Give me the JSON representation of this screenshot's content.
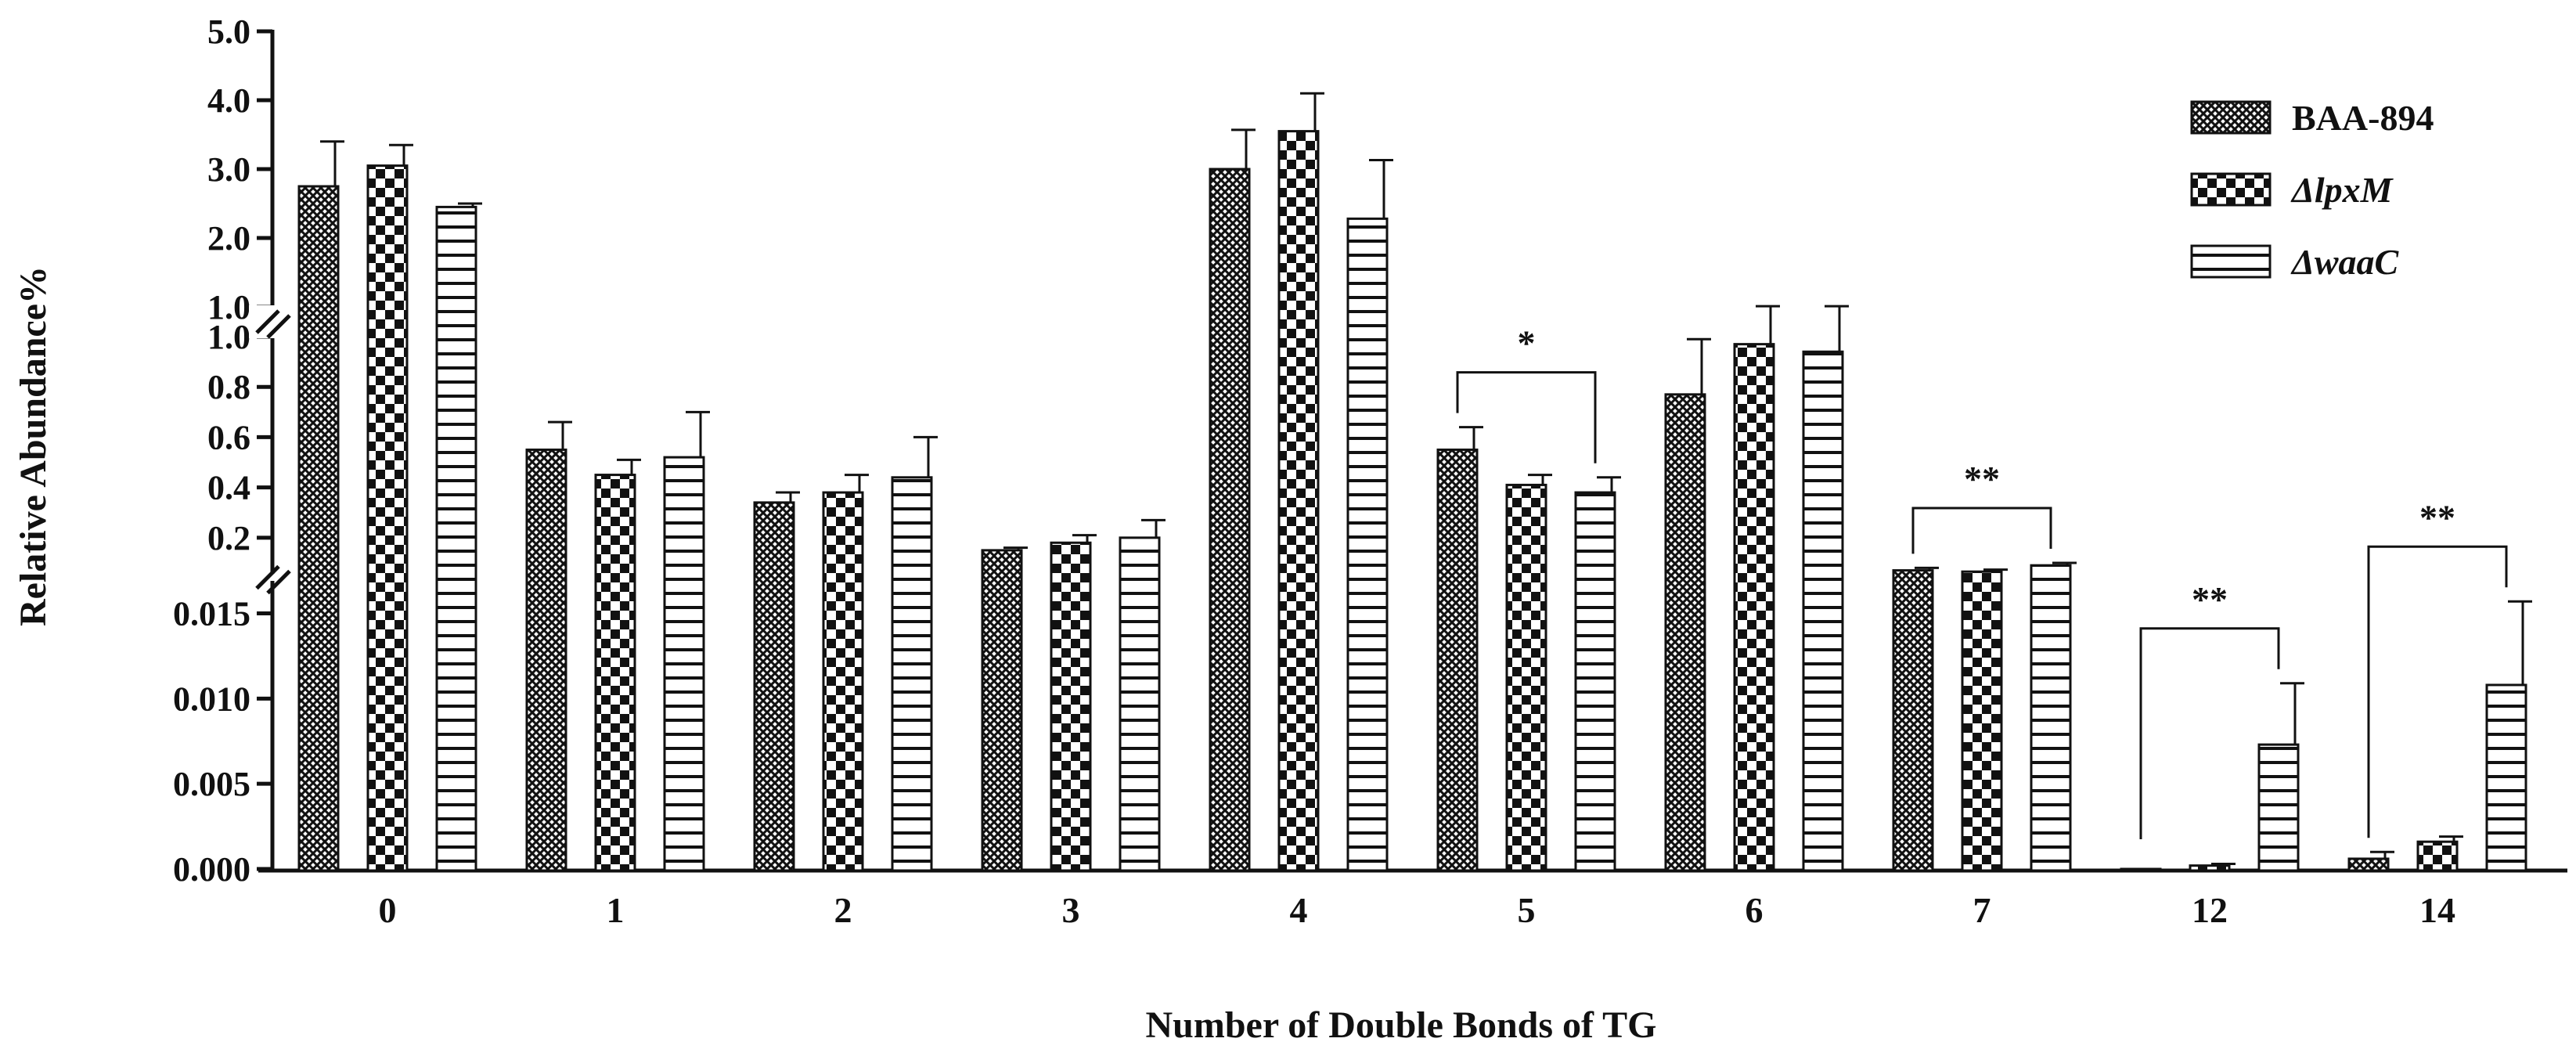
{
  "chart_data": {
    "type": "bar",
    "xlabel": "Number of Double Bonds of TG",
    "ylabel": "Relative Abundance%",
    "categories": [
      "0",
      "1",
      "2",
      "3",
      "4",
      "5",
      "6",
      "7",
      "12",
      "14"
    ],
    "series": [
      {
        "name": "BAA-894",
        "italic": false,
        "pattern": "crosshatch",
        "values": [
          2.75,
          0.55,
          0.34,
          0.15,
          3.0,
          0.55,
          0.77,
          0.07,
          0.0,
          0.0006
        ],
        "errors": [
          0.65,
          0.11,
          0.04,
          0.01,
          0.57,
          0.09,
          0.22,
          0.01,
          0.0,
          0.0004
        ]
      },
      {
        "name": "ΔlpxM",
        "italic": true,
        "pattern": "checker",
        "values": [
          3.05,
          0.45,
          0.38,
          0.18,
          3.55,
          0.41,
          0.97,
          0.065,
          0.0002,
          0.0016
        ],
        "errors": [
          0.3,
          0.06,
          0.07,
          0.03,
          0.55,
          0.04,
          0.04,
          0.008,
          0.0001,
          0.0003
        ]
      },
      {
        "name": "ΔwaaC",
        "italic": true,
        "pattern": "horizontal",
        "values": [
          2.45,
          0.52,
          0.44,
          0.2,
          2.28,
          0.38,
          0.94,
          0.09,
          0.0073,
          0.0108
        ],
        "errors": [
          0.05,
          0.18,
          0.16,
          0.07,
          0.85,
          0.06,
          0.07,
          0.01,
          0.0036,
          0.0049
        ]
      }
    ],
    "y_axis_segments": [
      {
        "range": [
          0,
          0.017
        ],
        "ticks": [
          "0.000",
          "0.005",
          "0.010",
          "0.015"
        ],
        "tick_values": [
          0,
          0.005,
          0.01,
          0.015
        ]
      },
      {
        "range": [
          0.05,
          1.0
        ],
        "ticks": [
          "0.2",
          "0.4",
          "0.6",
          "0.8",
          "1.0"
        ],
        "tick_values": [
          0.2,
          0.4,
          0.6,
          0.8,
          1.0
        ]
      },
      {
        "range": [
          1.0,
          5.0
        ],
        "ticks": [
          "1.0",
          "2.0",
          "3.0",
          "4.0",
          "5.0"
        ],
        "tick_values": [
          1.0,
          2.0,
          3.0,
          4.0,
          5.0
        ]
      }
    ],
    "significance": [
      {
        "category": "5",
        "label": "*"
      },
      {
        "category": "7",
        "label": "**"
      },
      {
        "category": "12",
        "label": "**"
      },
      {
        "category": "14",
        "label": "**"
      }
    ],
    "legend_position": "top-right",
    "grid": false
  }
}
